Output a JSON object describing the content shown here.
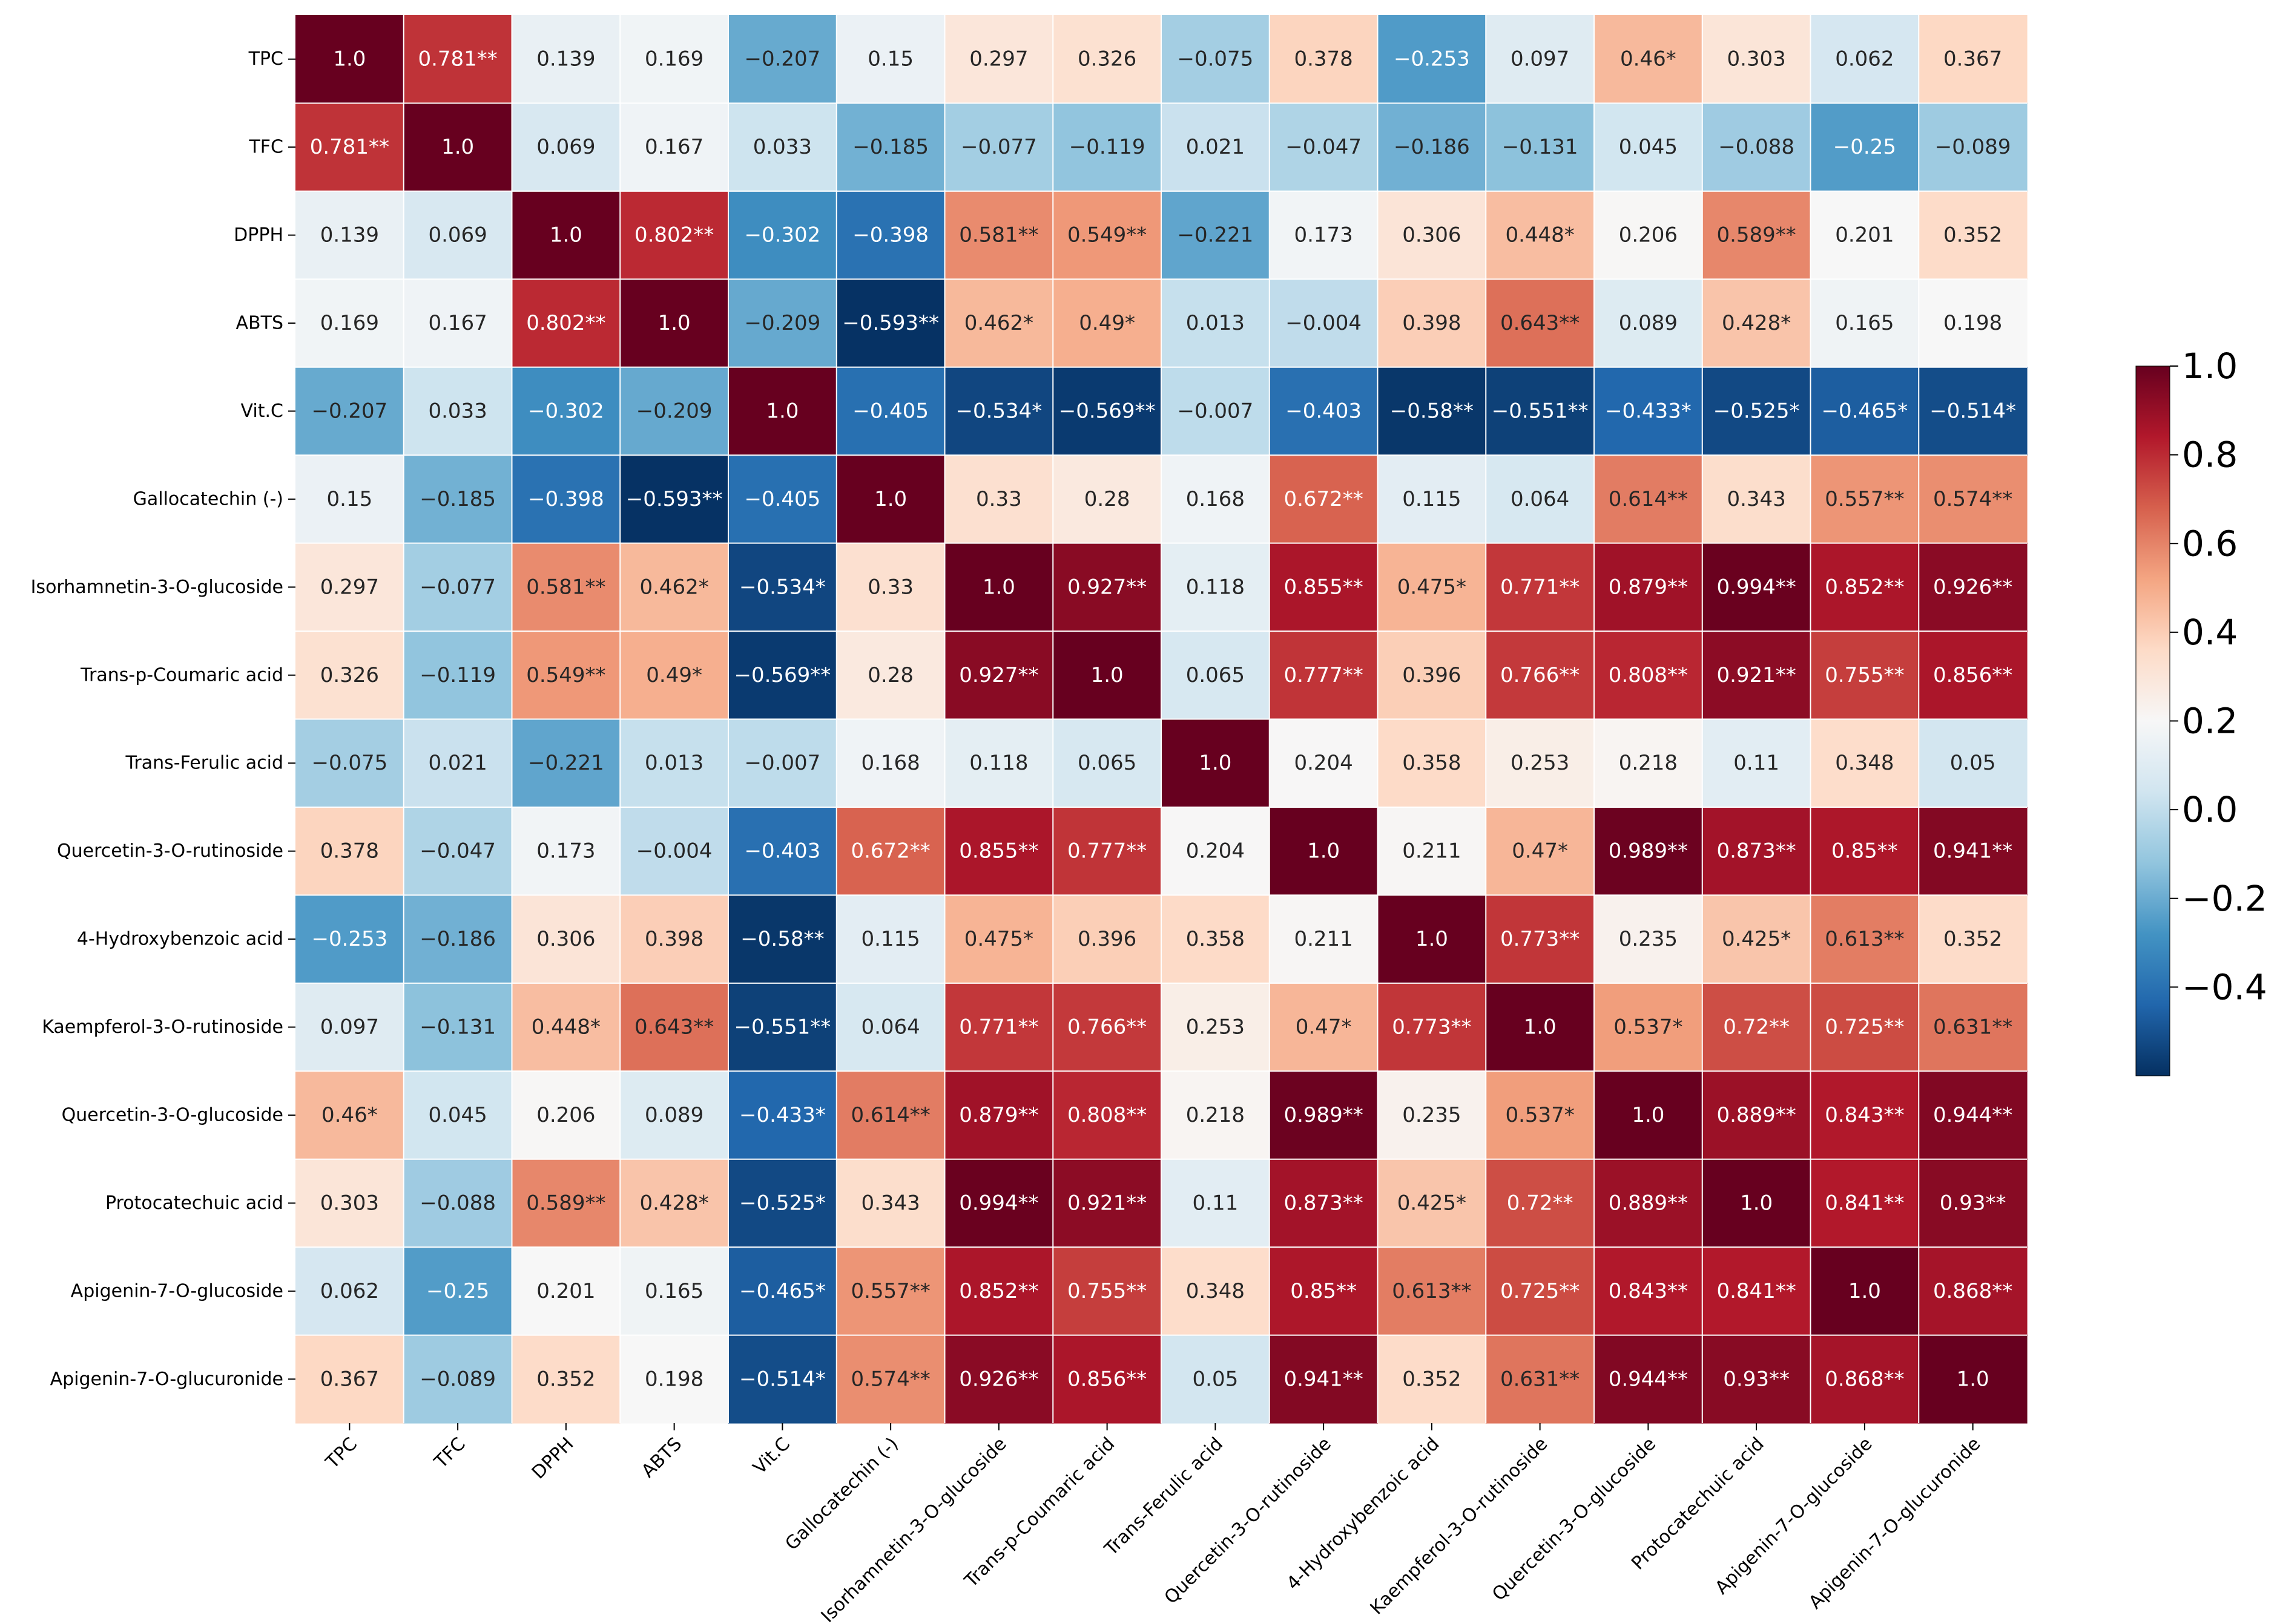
{
  "chart_data": {
    "type": "heatmap",
    "title": "",
    "xlabel": "",
    "ylabel": "",
    "colormap": "RdBu_r",
    "vmin": -0.6,
    "vmax": 1.0,
    "labels": [
      "TPC",
      "TFC",
      "DPPH",
      "ABTS",
      "Vit.C",
      "Gallocatechin (-)",
      "Isorhamnetin-3-O-glucoside",
      "Trans-p-Coumaric acid",
      "Trans-Ferulic acid",
      "Quercetin-3-O-rutinoside",
      "4-Hydroxybenzoic acid",
      "Kaempferol-3-O-rutinoside",
      "Quercetin-3-O-glucoside",
      "Protocatechuic acid",
      "Apigenin-7-O-glucoside",
      "Apigenin-7-O-glucuronide"
    ],
    "values": [
      [
        1.0,
        0.781,
        0.139,
        0.169,
        -0.207,
        0.15,
        0.297,
        0.326,
        -0.075,
        0.378,
        -0.253,
        0.097,
        0.46,
        0.303,
        0.062,
        0.367
      ],
      [
        0.781,
        1.0,
        0.069,
        0.167,
        0.033,
        -0.185,
        -0.077,
        -0.119,
        0.021,
        -0.047,
        -0.186,
        -0.131,
        0.045,
        -0.088,
        -0.25,
        -0.089
      ],
      [
        0.139,
        0.069,
        1.0,
        0.802,
        -0.302,
        -0.398,
        0.581,
        0.549,
        -0.221,
        0.173,
        0.306,
        0.448,
        0.206,
        0.589,
        0.201,
        0.352
      ],
      [
        0.169,
        0.167,
        0.802,
        1.0,
        -0.209,
        -0.593,
        0.462,
        0.49,
        0.013,
        -0.004,
        0.398,
        0.643,
        0.089,
        0.428,
        0.165,
        0.198
      ],
      [
        -0.207,
        0.033,
        -0.302,
        -0.209,
        1.0,
        -0.405,
        -0.534,
        -0.569,
        -0.007,
        -0.403,
        -0.58,
        -0.551,
        -0.433,
        -0.525,
        -0.465,
        -0.514
      ],
      [
        0.15,
        -0.185,
        -0.398,
        -0.593,
        -0.405,
        1.0,
        0.33,
        0.28,
        0.168,
        0.672,
        0.115,
        0.064,
        0.614,
        0.343,
        0.557,
        0.574
      ],
      [
        0.297,
        -0.077,
        0.581,
        0.462,
        -0.534,
        0.33,
        1.0,
        0.927,
        0.118,
        0.855,
        0.475,
        0.771,
        0.879,
        0.994,
        0.852,
        0.926
      ],
      [
        0.326,
        -0.119,
        0.549,
        0.49,
        -0.569,
        0.28,
        0.927,
        1.0,
        0.065,
        0.777,
        0.396,
        0.766,
        0.808,
        0.921,
        0.755,
        0.856
      ],
      [
        -0.075,
        0.021,
        -0.221,
        0.013,
        -0.007,
        0.168,
        0.118,
        0.065,
        1.0,
        0.204,
        0.358,
        0.253,
        0.218,
        0.11,
        0.348,
        0.05
      ],
      [
        0.378,
        -0.047,
        0.173,
        -0.004,
        -0.403,
        0.672,
        0.855,
        0.777,
        0.204,
        1.0,
        0.211,
        0.47,
        0.989,
        0.873,
        0.85,
        0.941
      ],
      [
        -0.253,
        -0.186,
        0.306,
        0.398,
        -0.58,
        0.115,
        0.475,
        0.396,
        0.358,
        0.211,
        1.0,
        0.773,
        0.235,
        0.425,
        0.613,
        0.352
      ],
      [
        0.097,
        -0.131,
        0.448,
        0.643,
        -0.551,
        0.064,
        0.771,
        0.766,
        0.253,
        0.47,
        0.773,
        1.0,
        0.537,
        0.72,
        0.725,
        0.631
      ],
      [
        0.46,
        0.045,
        0.206,
        0.089,
        -0.433,
        0.614,
        0.879,
        0.808,
        0.218,
        0.989,
        0.235,
        0.537,
        1.0,
        0.889,
        0.843,
        0.944
      ],
      [
        0.303,
        -0.088,
        0.589,
        0.428,
        -0.525,
        0.343,
        0.994,
        0.921,
        0.11,
        0.873,
        0.425,
        0.72,
        0.889,
        1.0,
        0.841,
        0.93
      ],
      [
        0.062,
        -0.25,
        0.201,
        0.165,
        -0.465,
        0.557,
        0.852,
        0.755,
        0.348,
        0.85,
        0.613,
        0.725,
        0.843,
        0.841,
        1.0,
        0.868
      ],
      [
        0.367,
        -0.089,
        0.352,
        0.198,
        -0.514,
        0.574,
        0.926,
        0.856,
        0.05,
        0.941,
        0.352,
        0.631,
        0.944,
        0.93,
        0.868,
        1.0
      ]
    ],
    "annotations": [
      [
        "1.0",
        "0.781**",
        "0.139",
        "0.169",
        "−0.207",
        "0.15",
        "0.297",
        "0.326",
        "−0.075",
        "0.378",
        "−0.253",
        "0.097",
        "0.46*",
        "0.303",
        "0.062",
        "0.367"
      ],
      [
        "0.781**",
        "1.0",
        "0.069",
        "0.167",
        "0.033",
        "−0.185",
        "−0.077",
        "−0.119",
        "0.021",
        "−0.047",
        "−0.186",
        "−0.131",
        "0.045",
        "−0.088",
        "−0.25",
        "−0.089"
      ],
      [
        "0.139",
        "0.069",
        "1.0",
        "0.802**",
        "−0.302",
        "−0.398",
        "0.581**",
        "0.549**",
        "−0.221",
        "0.173",
        "0.306",
        "0.448*",
        "0.206",
        "0.589**",
        "0.201",
        "0.352"
      ],
      [
        "0.169",
        "0.167",
        "0.802**",
        "1.0",
        "−0.209",
        "−0.593**",
        "0.462*",
        "0.49*",
        "0.013",
        "−0.004",
        "0.398",
        "0.643**",
        "0.089",
        "0.428*",
        "0.165",
        "0.198"
      ],
      [
        "−0.207",
        "0.033",
        "−0.302",
        "−0.209",
        "1.0",
        "−0.405",
        "−0.534*",
        "−0.569**",
        "−0.007",
        "−0.403",
        "−0.58**",
        "−0.551**",
        "−0.433*",
        "−0.525*",
        "−0.465*",
        "−0.514*"
      ],
      [
        "0.15",
        "−0.185",
        "−0.398",
        "−0.593**",
        "−0.405",
        "1.0",
        "0.33",
        "0.28",
        "0.168",
        "0.672**",
        "0.115",
        "0.064",
        "0.614**",
        "0.343",
        "0.557**",
        "0.574**"
      ],
      [
        "0.297",
        "−0.077",
        "0.581**",
        "0.462*",
        "−0.534*",
        "0.33",
        "1.0",
        "0.927**",
        "0.118",
        "0.855**",
        "0.475*",
        "0.771**",
        "0.879**",
        "0.994**",
        "0.852**",
        "0.926**"
      ],
      [
        "0.326",
        "−0.119",
        "0.549**",
        "0.49*",
        "−0.569**",
        "0.28",
        "0.927**",
        "1.0",
        "0.065",
        "0.777**",
        "0.396",
        "0.766**",
        "0.808**",
        "0.921**",
        "0.755**",
        "0.856**"
      ],
      [
        "−0.075",
        "0.021",
        "−0.221",
        "0.013",
        "−0.007",
        "0.168",
        "0.118",
        "0.065",
        "1.0",
        "0.204",
        "0.358",
        "0.253",
        "0.218",
        "0.11",
        "0.348",
        "0.05"
      ],
      [
        "0.378",
        "−0.047",
        "0.173",
        "−0.004",
        "−0.403",
        "0.672**",
        "0.855**",
        "0.777**",
        "0.204",
        "1.0",
        "0.211",
        "0.47*",
        "0.989**",
        "0.873**",
        "0.85**",
        "0.941**"
      ],
      [
        "−0.253",
        "−0.186",
        "0.306",
        "0.398",
        "−0.58**",
        "0.115",
        "0.475*",
        "0.396",
        "0.358",
        "0.211",
        "1.0",
        "0.773**",
        "0.235",
        "0.425*",
        "0.613**",
        "0.352"
      ],
      [
        "0.097",
        "−0.131",
        "0.448*",
        "0.643**",
        "−0.551**",
        "0.064",
        "0.771**",
        "0.766**",
        "0.253",
        "0.47*",
        "0.773**",
        "1.0",
        "0.537*",
        "0.72**",
        "0.725**",
        "0.631**"
      ],
      [
        "0.46*",
        "0.045",
        "0.206",
        "0.089",
        "−0.433*",
        "0.614**",
        "0.879**",
        "0.808**",
        "0.218",
        "0.989**",
        "0.235",
        "0.537*",
        "1.0",
        "0.889**",
        "0.843**",
        "0.944**"
      ],
      [
        "0.303",
        "−0.088",
        "0.589**",
        "0.428*",
        "−0.525*",
        "0.343",
        "0.994**",
        "0.921**",
        "0.11",
        "0.873**",
        "0.425*",
        "0.72**",
        "0.889**",
        "1.0",
        "0.841**",
        "0.93**"
      ],
      [
        "0.062",
        "−0.25",
        "0.201",
        "0.165",
        "−0.465*",
        "0.557**",
        "0.852**",
        "0.755**",
        "0.348",
        "0.85**",
        "0.613**",
        "0.725**",
        "0.843**",
        "0.841**",
        "1.0",
        "0.868**"
      ],
      [
        "0.367",
        "−0.089",
        "0.352",
        "0.198",
        "−0.514*",
        "0.574**",
        "0.926**",
        "0.856**",
        "0.05",
        "0.941**",
        "0.352",
        "0.631**",
        "0.944**",
        "0.93**",
        "0.868**",
        "1.0"
      ]
    ],
    "colorbar": {
      "ticks": [
        1.0,
        0.8,
        0.6,
        0.4,
        0.2,
        0.0,
        -0.2,
        -0.4
      ],
      "tick_labels": [
        "1.0",
        "0.8",
        "0.6",
        "0.4",
        "0.2",
        "0.0",
        "−0.2",
        "−0.4"
      ]
    }
  }
}
